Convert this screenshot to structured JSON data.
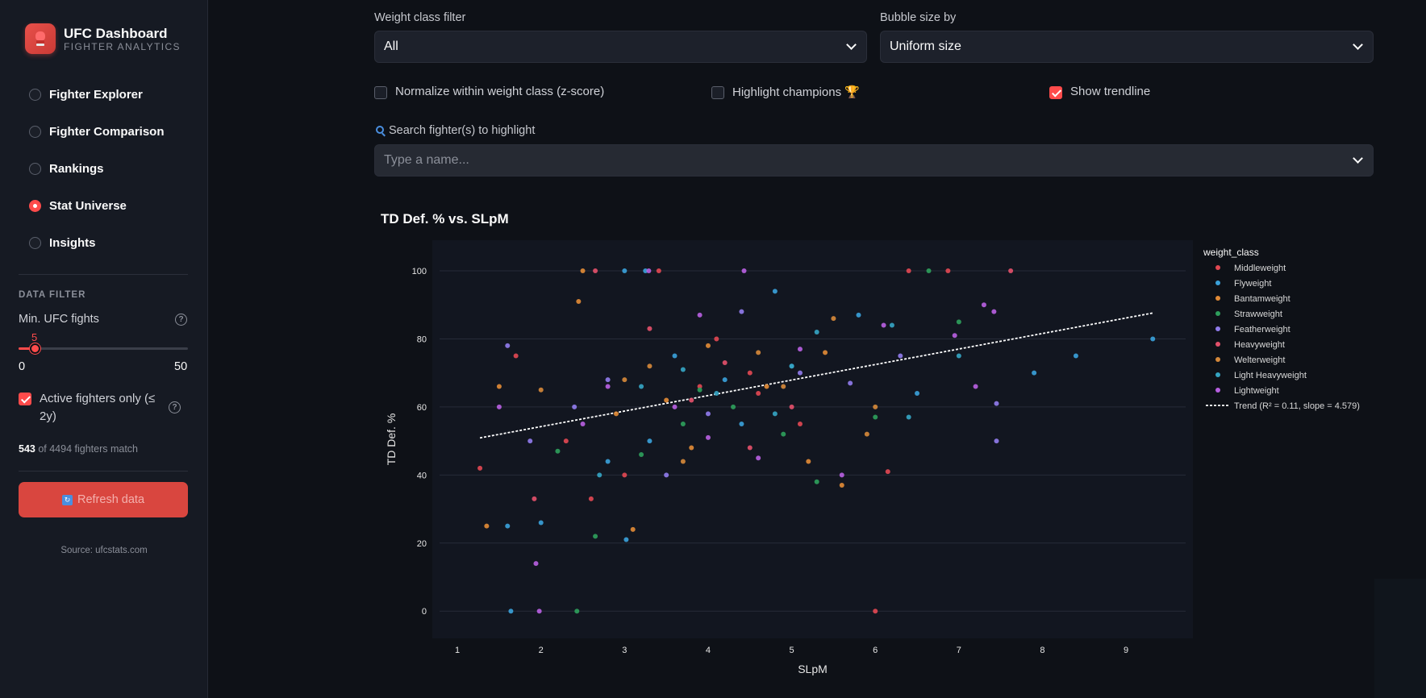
{
  "sidebar": {
    "title": "UFC Dashboard",
    "subtitle": "FIGHTER ANALYTICS",
    "nav": [
      {
        "label": "Fighter Explorer",
        "selected": false
      },
      {
        "label": "Fighter Comparison",
        "selected": false
      },
      {
        "label": "Rankings",
        "selected": false
      },
      {
        "label": "Stat Universe",
        "selected": true
      },
      {
        "label": "Insights",
        "selected": false
      }
    ],
    "section_title": "DATA FILTER",
    "min_fights_label": "Min. UFC fights",
    "min_fights_value": "5",
    "slider_min": "0",
    "slider_max": "50",
    "active_only_label": "Active fighters only (≤ 2y)",
    "active_only_checked": true,
    "match_count": "543",
    "match_rest": " of 4494 fighters match",
    "refresh_label": "Refresh data",
    "source": "Source: ufcstats.com"
  },
  "controls": {
    "weight_filter_label": "Weight class filter",
    "weight_filter_value": "All",
    "bubble_label": "Bubble size by",
    "bubble_value": "Uniform size",
    "normalize_label": "Normalize within weight class (z-score)",
    "normalize_checked": false,
    "champions_label": "Highlight champions 🏆",
    "champions_checked": false,
    "trendline_label": "Show trendline",
    "trendline_checked": true,
    "search_label": "Search fighter(s) to highlight",
    "search_placeholder": "Type a name..."
  },
  "colors": {
    "Middleweight": "#e04852",
    "Flyweight": "#3aa0d8",
    "Bantamweight": "#e08a36",
    "Strawweight": "#2e9e5b",
    "Featherweight": "#8f7bea",
    "Heavyweight": "#e2506a",
    "Welterweight": "#d4883a",
    "Light Heavyweight": "#35a4c2",
    "Lightweight": "#b65fe0"
  },
  "chart_data": {
    "type": "scatter",
    "title": "TD Def. % vs. SLpM",
    "xlabel": "SLpM",
    "ylabel": "TD Def. %",
    "xlim": [
      0.7,
      9.8
    ],
    "ylim": [
      -8,
      109
    ],
    "xticks": [
      1,
      2,
      3,
      4,
      5,
      6,
      7,
      8,
      9
    ],
    "yticks": [
      0,
      20,
      40,
      60,
      80,
      100
    ],
    "legend_title": "weight_class",
    "legend_position": "right",
    "trend_label": "Trend (R² = 0.11, slope = 4.579)",
    "trend": {
      "x": [
        1.27,
        9.32
      ],
      "y": [
        50.9,
        87.6
      ]
    },
    "series": [
      {
        "name": "Middleweight",
        "points": [
          [
            3.41,
            100
          ],
          [
            6.4,
            100
          ],
          [
            6.87,
            100
          ],
          [
            1.27,
            42
          ],
          [
            1.7,
            75
          ],
          [
            6.0,
            0
          ],
          [
            6.15,
            41
          ],
          [
            2.3,
            50
          ],
          [
            3.0,
            40
          ],
          [
            4.1,
            80
          ],
          [
            5.1,
            55
          ],
          [
            3.9,
            66
          ],
          [
            4.5,
            70
          ],
          [
            2.6,
            33
          ],
          [
            4.6,
            64
          ]
        ]
      },
      {
        "name": "Flyweight",
        "points": [
          [
            3.0,
            100
          ],
          [
            3.25,
            100
          ],
          [
            9.32,
            80
          ],
          [
            8.4,
            75
          ],
          [
            7.9,
            70
          ],
          [
            1.64,
            0
          ],
          [
            1.6,
            25
          ],
          [
            3.02,
            21
          ],
          [
            2.0,
            26
          ],
          [
            6.5,
            64
          ],
          [
            3.6,
            75
          ],
          [
            4.2,
            68
          ],
          [
            5.0,
            72
          ],
          [
            5.8,
            87
          ],
          [
            4.8,
            94
          ],
          [
            3.3,
            50
          ],
          [
            2.8,
            44
          ],
          [
            4.4,
            55
          ]
        ]
      },
      {
        "name": "Bantamweight",
        "points": [
          [
            2.5,
            100
          ],
          [
            1.35,
            25
          ],
          [
            1.5,
            66
          ],
          [
            2.45,
            91
          ],
          [
            3.1,
            24
          ],
          [
            5.6,
            37
          ],
          [
            5.2,
            44
          ],
          [
            4.0,
            78
          ],
          [
            3.5,
            62
          ],
          [
            4.7,
            66
          ],
          [
            2.9,
            58
          ],
          [
            5.4,
            76
          ],
          [
            3.8,
            48
          ]
        ]
      },
      {
        "name": "Strawweight",
        "points": [
          [
            2.43,
            0
          ],
          [
            6.64,
            100
          ],
          [
            7.0,
            85
          ],
          [
            6.0,
            57
          ],
          [
            2.65,
            22
          ],
          [
            2.2,
            47
          ],
          [
            3.7,
            55
          ],
          [
            4.3,
            60
          ],
          [
            5.3,
            38
          ],
          [
            4.9,
            52
          ],
          [
            3.2,
            46
          ],
          [
            3.9,
            65
          ]
        ]
      },
      {
        "name": "Featherweight",
        "points": [
          [
            1.6,
            78
          ],
          [
            1.87,
            50
          ],
          [
            7.45,
            50
          ],
          [
            7.45,
            61
          ],
          [
            5.7,
            67
          ],
          [
            4.4,
            88
          ],
          [
            3.5,
            40
          ],
          [
            2.8,
            68
          ],
          [
            5.1,
            70
          ],
          [
            4.0,
            58
          ],
          [
            6.3,
            75
          ],
          [
            2.4,
            60
          ]
        ]
      },
      {
        "name": "Heavyweight",
        "points": [
          [
            2.65,
            100
          ],
          [
            7.62,
            100
          ],
          [
            1.92,
            33
          ],
          [
            5.0,
            60
          ],
          [
            4.5,
            48
          ],
          [
            3.3,
            83
          ],
          [
            3.8,
            62
          ],
          [
            4.2,
            73
          ]
        ]
      },
      {
        "name": "Welterweight",
        "points": [
          [
            6.0,
            60
          ],
          [
            3.0,
            68
          ],
          [
            5.5,
            86
          ],
          [
            4.6,
            76
          ],
          [
            3.7,
            44
          ],
          [
            2.0,
            65
          ],
          [
            4.9,
            66
          ],
          [
            3.3,
            72
          ],
          [
            5.9,
            52
          ]
        ]
      },
      {
        "name": "Light Heavyweight",
        "points": [
          [
            7.0,
            75
          ],
          [
            6.4,
            57
          ],
          [
            3.7,
            71
          ],
          [
            4.8,
            58
          ],
          [
            5.3,
            82
          ],
          [
            2.7,
            40
          ],
          [
            4.1,
            64
          ],
          [
            3.2,
            66
          ],
          [
            5.0,
            72
          ],
          [
            6.2,
            84
          ]
        ]
      },
      {
        "name": "Lightweight",
        "points": [
          [
            1.98,
            0
          ],
          [
            1.94,
            14
          ],
          [
            4.43,
            100
          ],
          [
            3.29,
            100
          ],
          [
            7.42,
            88
          ],
          [
            6.95,
            81
          ],
          [
            7.3,
            90
          ],
          [
            7.2,
            66
          ],
          [
            1.5,
            60
          ],
          [
            2.8,
            66
          ],
          [
            4.0,
            51
          ],
          [
            5.1,
            77
          ],
          [
            5.6,
            40
          ],
          [
            3.9,
            87
          ],
          [
            6.1,
            84
          ],
          [
            4.6,
            45
          ],
          [
            2.5,
            55
          ],
          [
            3.6,
            60
          ]
        ]
      }
    ]
  }
}
